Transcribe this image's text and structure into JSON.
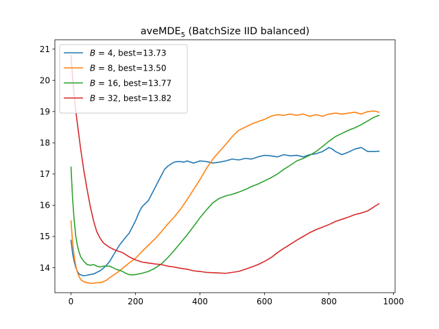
{
  "chart_data": {
    "type": "line",
    "title": {
      "main": "aveMDE",
      "subscript": "5",
      "rest": " (BatchSize IID balanced)"
    },
    "xlabel": "",
    "ylabel": "",
    "xlim": [
      -50,
      1005
    ],
    "ylim": [
      13.2,
      21.3
    ],
    "xticks": [
      0,
      200,
      400,
      600,
      800,
      1000
    ],
    "yticks": [
      14,
      15,
      16,
      17,
      18,
      19,
      20,
      21
    ],
    "grid": false,
    "legend_position": "upper left",
    "series": [
      {
        "name": "B = 4, best=13.73",
        "legend_var": "B",
        "legend_rest": " = 4, best=13.73",
        "color": "#1f77b4",
        "x": [
          0,
          5,
          10,
          15,
          20,
          25,
          30,
          40,
          50,
          60,
          70,
          80,
          90,
          100,
          110,
          120,
          130,
          140,
          150,
          160,
          170,
          180,
          190,
          200,
          210,
          220,
          230,
          240,
          250,
          260,
          270,
          280,
          290,
          300,
          310,
          320,
          330,
          340,
          350,
          360,
          380,
          400,
          420,
          440,
          460,
          480,
          500,
          520,
          540,
          560,
          580,
          600,
          620,
          640,
          660,
          680,
          700,
          720,
          740,
          760,
          780,
          800,
          810,
          820,
          840,
          860,
          880,
          900,
          920,
          940,
          955
        ],
        "y": [
          14.88,
          14.45,
          14.2,
          14.0,
          13.88,
          13.8,
          13.77,
          13.74,
          13.76,
          13.78,
          13.8,
          13.85,
          13.9,
          13.98,
          14.08,
          14.2,
          14.38,
          14.55,
          14.72,
          14.85,
          14.98,
          15.1,
          15.3,
          15.5,
          15.75,
          15.95,
          16.05,
          16.15,
          16.35,
          16.55,
          16.75,
          16.95,
          17.15,
          17.25,
          17.32,
          17.38,
          17.4,
          17.4,
          17.38,
          17.42,
          17.35,
          17.42,
          17.4,
          17.35,
          17.38,
          17.42,
          17.48,
          17.45,
          17.5,
          17.48,
          17.55,
          17.6,
          17.58,
          17.55,
          17.62,
          17.58,
          17.6,
          17.55,
          17.62,
          17.65,
          17.72,
          17.85,
          17.8,
          17.72,
          17.62,
          17.7,
          17.8,
          17.85,
          17.72,
          17.72,
          17.73
        ]
      },
      {
        "name": "B = 8, best=13.50",
        "legend_var": "B",
        "legend_rest": " = 8, best=13.50",
        "color": "#ff7f0e",
        "x": [
          0,
          5,
          10,
          15,
          20,
          25,
          30,
          40,
          50,
          60,
          70,
          80,
          90,
          100,
          110,
          120,
          140,
          160,
          180,
          200,
          220,
          240,
          260,
          280,
          300,
          320,
          340,
          360,
          380,
          400,
          420,
          440,
          460,
          480,
          500,
          520,
          540,
          560,
          580,
          600,
          620,
          640,
          660,
          680,
          700,
          720,
          740,
          760,
          780,
          800,
          820,
          840,
          860,
          880,
          900,
          920,
          940,
          955
        ],
        "y": [
          15.5,
          14.8,
          14.35,
          14.05,
          13.85,
          13.72,
          13.62,
          13.55,
          13.52,
          13.5,
          13.5,
          13.52,
          13.52,
          13.55,
          13.6,
          13.68,
          13.82,
          13.98,
          14.15,
          14.3,
          14.52,
          14.72,
          14.92,
          15.15,
          15.4,
          15.62,
          15.88,
          16.18,
          16.5,
          16.82,
          17.18,
          17.48,
          17.72,
          17.95,
          18.2,
          18.4,
          18.5,
          18.6,
          18.68,
          18.75,
          18.85,
          18.9,
          18.88,
          18.92,
          18.88,
          18.92,
          18.85,
          18.9,
          18.85,
          18.92,
          18.95,
          18.92,
          18.95,
          18.98,
          18.92,
          19.0,
          19.02,
          18.98
        ]
      },
      {
        "name": "B = 16, best=13.77",
        "legend_var": "B",
        "legend_rest": " = 16, best=13.77",
        "color": "#2ca02c",
        "x": [
          0,
          5,
          10,
          15,
          20,
          25,
          30,
          40,
          50,
          60,
          70,
          80,
          90,
          100,
          110,
          120,
          130,
          140,
          150,
          160,
          170,
          180,
          190,
          200,
          220,
          240,
          260,
          280,
          300,
          320,
          340,
          360,
          380,
          400,
          420,
          440,
          460,
          480,
          500,
          520,
          540,
          560,
          580,
          600,
          620,
          640,
          660,
          680,
          700,
          720,
          740,
          760,
          780,
          800,
          820,
          840,
          860,
          880,
          900,
          920,
          940,
          955
        ],
        "y": [
          17.22,
          16.2,
          15.5,
          15.0,
          14.7,
          14.5,
          14.35,
          14.2,
          14.1,
          14.08,
          14.1,
          14.05,
          14.02,
          14.05,
          14.05,
          14.05,
          14.0,
          13.95,
          13.92,
          13.88,
          13.82,
          13.78,
          13.77,
          13.78,
          13.82,
          13.88,
          13.98,
          14.12,
          14.32,
          14.55,
          14.8,
          15.05,
          15.32,
          15.6,
          15.85,
          16.08,
          16.22,
          16.3,
          16.35,
          16.42,
          16.5,
          16.6,
          16.68,
          16.78,
          16.88,
          17.0,
          17.15,
          17.28,
          17.42,
          17.5,
          17.6,
          17.72,
          17.88,
          18.05,
          18.2,
          18.3,
          18.4,
          18.48,
          18.58,
          18.7,
          18.82,
          18.88
        ]
      },
      {
        "name": "B = 32, best=13.82",
        "legend_var": "B",
        "legend_rest": " = 32, best=13.82",
        "color": "#d62728",
        "x": [
          0,
          5,
          10,
          15,
          20,
          25,
          30,
          40,
          50,
          60,
          70,
          80,
          90,
          100,
          110,
          120,
          130,
          140,
          150,
          160,
          180,
          200,
          220,
          240,
          260,
          280,
          300,
          320,
          340,
          360,
          380,
          400,
          420,
          440,
          460,
          480,
          500,
          520,
          540,
          560,
          580,
          600,
          620,
          640,
          660,
          680,
          700,
          720,
          740,
          760,
          780,
          800,
          820,
          840,
          860,
          880,
          900,
          920,
          940,
          955
        ],
        "y": [
          20.8,
          20.1,
          19.5,
          19.0,
          18.6,
          18.2,
          17.8,
          17.1,
          16.5,
          15.95,
          15.5,
          15.15,
          14.95,
          14.8,
          14.72,
          14.65,
          14.6,
          14.55,
          14.52,
          14.48,
          14.35,
          14.25,
          14.18,
          14.15,
          14.12,
          14.1,
          14.05,
          14.02,
          13.98,
          13.95,
          13.9,
          13.88,
          13.85,
          13.84,
          13.83,
          13.82,
          13.85,
          13.88,
          13.95,
          14.02,
          14.1,
          14.2,
          14.32,
          14.48,
          14.62,
          14.75,
          14.88,
          15.0,
          15.12,
          15.22,
          15.3,
          15.38,
          15.48,
          15.55,
          15.62,
          15.7,
          15.75,
          15.82,
          15.95,
          16.05
        ]
      }
    ]
  }
}
